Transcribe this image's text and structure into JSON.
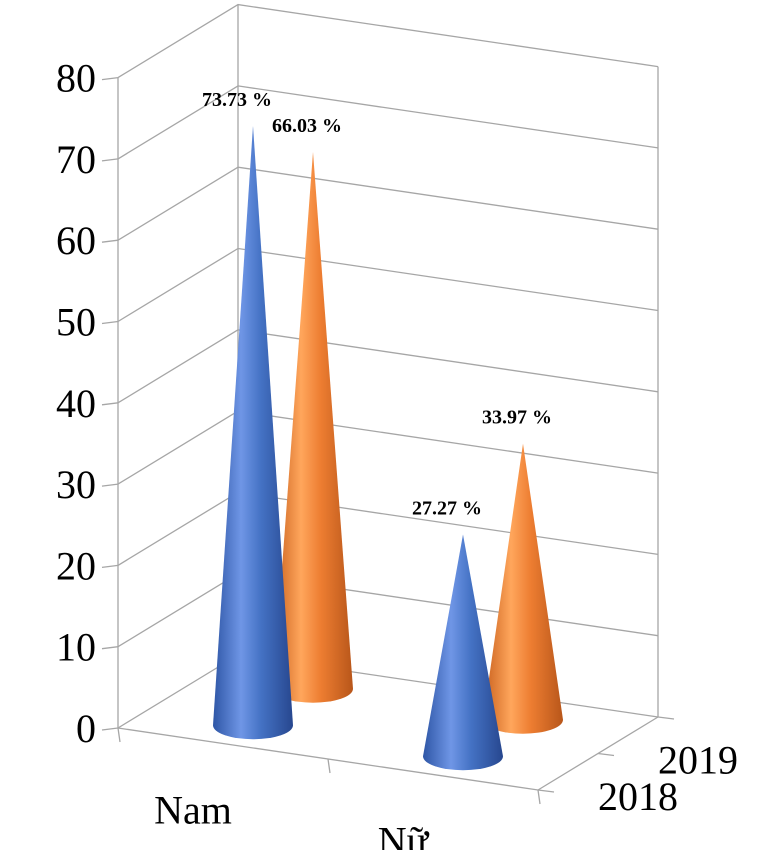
{
  "chart_data": {
    "type": "bar",
    "shape": "3d-cone",
    "categories": [
      "Nam",
      "Nữ"
    ],
    "series": [
      {
        "name": "2018",
        "values": [
          73.73,
          27.27
        ],
        "labels": [
          "73.73 %",
          "27.27 %"
        ],
        "color": "#4472c4"
      },
      {
        "name": "2019",
        "values": [
          66.03,
          33.97
        ],
        "labels": [
          "66.03 %",
          "33.97 %"
        ],
        "color": "#ed7d31"
      }
    ],
    "ylim": [
      0,
      80
    ],
    "yticks": [
      "0",
      "10",
      "20",
      "30",
      "40",
      "50",
      "60",
      "70",
      "80"
    ],
    "grid": true
  }
}
